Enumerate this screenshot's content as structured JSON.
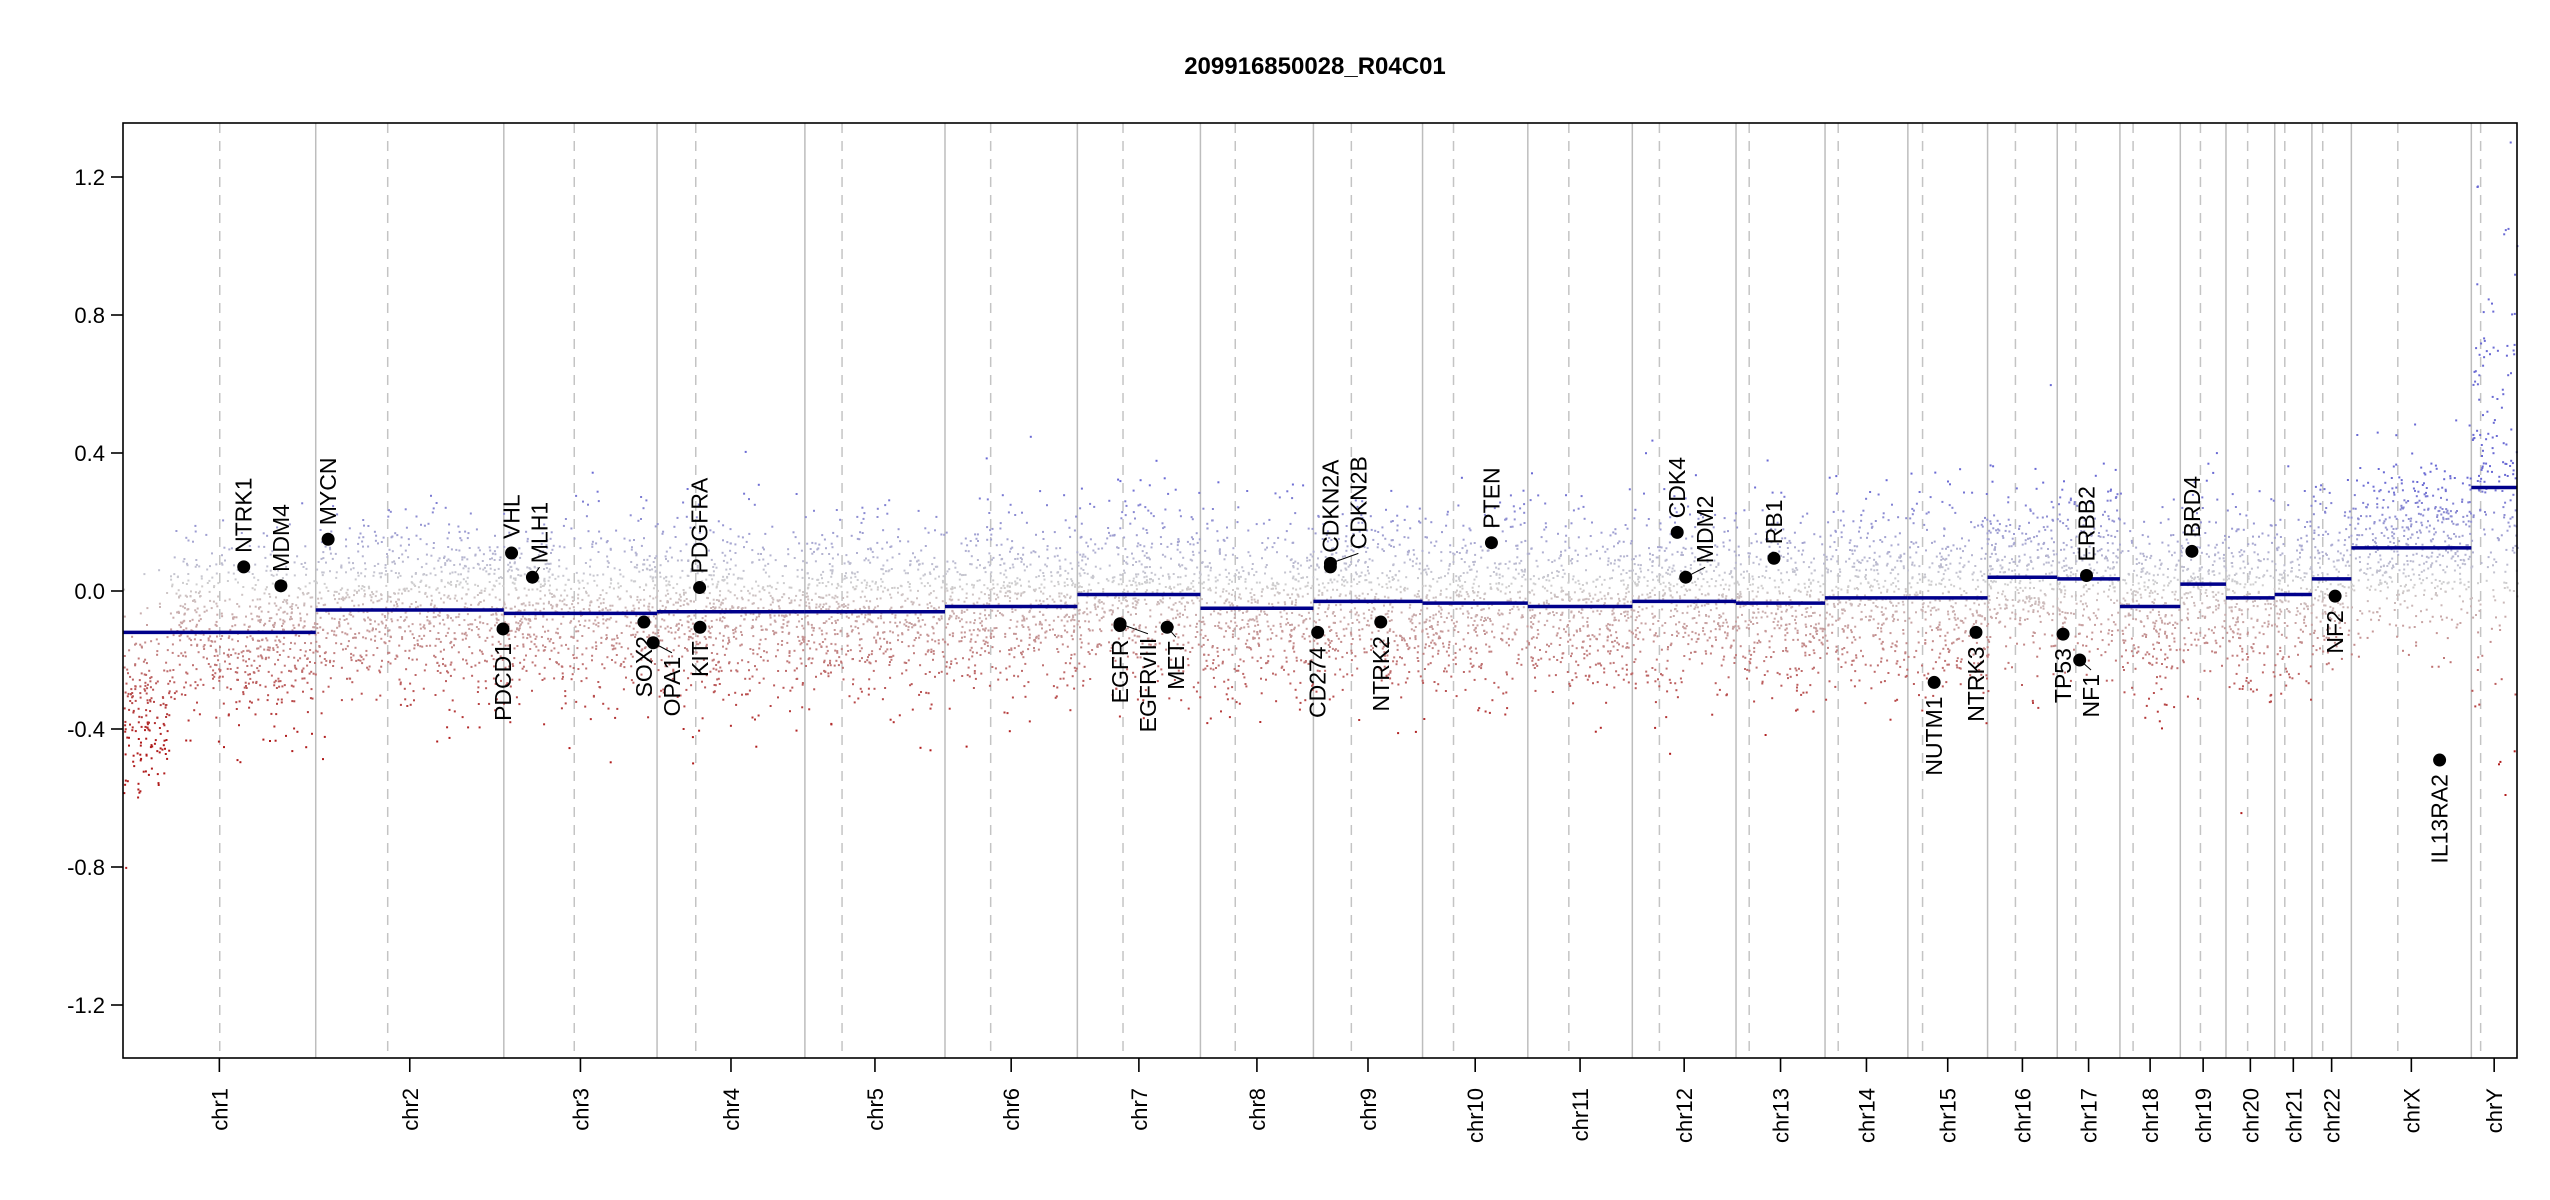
{
  "chart_data": {
    "type": "scatter",
    "title": "209916850028_R04C01",
    "xlabel": "",
    "ylabel": "",
    "ylim": [
      -1.35,
      1.35
    ],
    "yticks": [
      "-1.2",
      "-0.8",
      "-0.4",
      "0.0",
      "0.4",
      "0.8",
      "1.2"
    ],
    "grid": false,
    "colors": {
      "segment": "#00008B",
      "gain": "#6a6ad4",
      "neutral": "#cfcfcf",
      "loss": "#b01c1c",
      "chrom_line": "#bdbdbd",
      "centromere": "#c4c4c4"
    },
    "chromosomes": [
      {
        "name": "chr1",
        "length_mb": 249,
        "centromere_mb": 125,
        "segment": -0.12
      },
      {
        "name": "chr2",
        "length_mb": 243,
        "centromere_mb": 93,
        "segment": -0.055
      },
      {
        "name": "chr3",
        "length_mb": 198,
        "centromere_mb": 91,
        "segment": -0.065
      },
      {
        "name": "chr4",
        "length_mb": 191,
        "centromere_mb": 50,
        "segment": -0.06
      },
      {
        "name": "chr5",
        "length_mb": 181,
        "centromere_mb": 48,
        "segment": -0.06
      },
      {
        "name": "chr6",
        "length_mb": 171,
        "centromere_mb": 59,
        "segment": -0.045
      },
      {
        "name": "chr7",
        "length_mb": 159,
        "centromere_mb": 59,
        "segment": -0.01
      },
      {
        "name": "chr8",
        "length_mb": 146,
        "centromere_mb": 45,
        "segment": -0.05
      },
      {
        "name": "chr9",
        "length_mb": 141,
        "centromere_mb": 49,
        "segment": -0.03
      },
      {
        "name": "chr10",
        "length_mb": 136,
        "centromere_mb": 40,
        "segment": -0.035
      },
      {
        "name": "chr11",
        "length_mb": 135,
        "centromere_mb": 53,
        "segment": -0.045
      },
      {
        "name": "chr12",
        "length_mb": 134,
        "centromere_mb": 35,
        "segment": -0.03
      },
      {
        "name": "chr13",
        "length_mb": 115,
        "centromere_mb": 17,
        "segment": -0.035
      },
      {
        "name": "chr14",
        "length_mb": 107,
        "centromere_mb": 17,
        "segment": -0.02
      },
      {
        "name": "chr15",
        "length_mb": 103,
        "centromere_mb": 19,
        "segment": -0.02
      },
      {
        "name": "chr16",
        "length_mb": 90,
        "centromere_mb": 36,
        "segment": 0.04
      },
      {
        "name": "chr17",
        "length_mb": 81,
        "centromere_mb": 24,
        "segment": 0.035
      },
      {
        "name": "chr18",
        "length_mb": 78,
        "centromere_mb": 17,
        "segment": -0.045
      },
      {
        "name": "chr19",
        "length_mb": 59,
        "centromere_mb": 26,
        "segment": 0.02
      },
      {
        "name": "chr20",
        "length_mb": 63,
        "centromere_mb": 28,
        "segment": -0.02
      },
      {
        "name": "chr21",
        "length_mb": 48,
        "centromere_mb": 13,
        "segment": -0.01
      },
      {
        "name": "chr22",
        "length_mb": 51,
        "centromere_mb": 14,
        "segment": 0.035
      },
      {
        "name": "chrX",
        "length_mb": 155,
        "centromere_mb": 60,
        "segment": 0.125
      },
      {
        "name": "chrY",
        "length_mb": 59,
        "centromere_mb": 12,
        "segment": 0.3
      }
    ],
    "genes": [
      {
        "name": "NTRK1",
        "chr": "chr1",
        "pos_mb": 156,
        "value": 0.07
      },
      {
        "name": "MDM4",
        "chr": "chr1",
        "pos_mb": 204,
        "value": 0.015
      },
      {
        "name": "MYCN",
        "chr": "chr2",
        "pos_mb": 16,
        "value": 0.15
      },
      {
        "name": "PDCD1",
        "chr": "chr2",
        "pos_mb": 242,
        "value": -0.11
      },
      {
        "name": "VHL",
        "chr": "chr3",
        "pos_mb": 10,
        "value": 0.11
      },
      {
        "name": "MLH1",
        "chr": "chr3",
        "pos_mb": 37,
        "value": 0.04
      },
      {
        "name": "SOX2",
        "chr": "chr3",
        "pos_mb": 181,
        "value": -0.09
      },
      {
        "name": "OPA1",
        "chr": "chr3",
        "pos_mb": 193,
        "value": -0.15
      },
      {
        "name": "PDGFRA",
        "chr": "chr4",
        "pos_mb": 55,
        "value": 0.01
      },
      {
        "name": "KIT",
        "chr": "chr4",
        "pos_mb": 55.5,
        "value": -0.105
      },
      {
        "name": "EGFR",
        "chr": "chr7",
        "pos_mb": 55,
        "value": -0.1
      },
      {
        "name": "EGFRvIII",
        "chr": "chr7",
        "pos_mb": 55.2,
        "value": -0.095
      },
      {
        "name": "MET",
        "chr": "chr7",
        "pos_mb": 116,
        "value": -0.105
      },
      {
        "name": "CD274",
        "chr": "chr9",
        "pos_mb": 5.5,
        "value": -0.12
      },
      {
        "name": "CDKN2A",
        "chr": "chr9",
        "pos_mb": 21.9,
        "value": 0.07
      },
      {
        "name": "CDKN2B",
        "chr": "chr9",
        "pos_mb": 22.0,
        "value": 0.08
      },
      {
        "name": "NTRK2",
        "chr": "chr9",
        "pos_mb": 87,
        "value": -0.09
      },
      {
        "name": "PTEN",
        "chr": "chr10",
        "pos_mb": 89,
        "value": 0.14
      },
      {
        "name": "CDK4",
        "chr": "chr12",
        "pos_mb": 58,
        "value": 0.17
      },
      {
        "name": "MDM2",
        "chr": "chr12",
        "pos_mb": 69,
        "value": 0.04
      },
      {
        "name": "RB1",
        "chr": "chr13",
        "pos_mb": 49,
        "value": 0.095
      },
      {
        "name": "NUTM1",
        "chr": "chr15",
        "pos_mb": 34,
        "value": -0.265
      },
      {
        "name": "NTRK3",
        "chr": "chr15",
        "pos_mb": 88,
        "value": -0.12
      },
      {
        "name": "TP53",
        "chr": "chr17",
        "pos_mb": 7.5,
        "value": -0.125
      },
      {
        "name": "NF1",
        "chr": "chr17",
        "pos_mb": 29,
        "value": -0.2
      },
      {
        "name": "ERBB2",
        "chr": "chr17",
        "pos_mb": 37.8,
        "value": 0.045
      },
      {
        "name": "BRD4",
        "chr": "chr19",
        "pos_mb": 15,
        "value": 0.115
      },
      {
        "name": "NF2",
        "chr": "chr22",
        "pos_mb": 30,
        "value": -0.015
      },
      {
        "name": "IL13RA2",
        "chr": "chrX",
        "pos_mb": 114,
        "value": -0.49
      }
    ]
  }
}
